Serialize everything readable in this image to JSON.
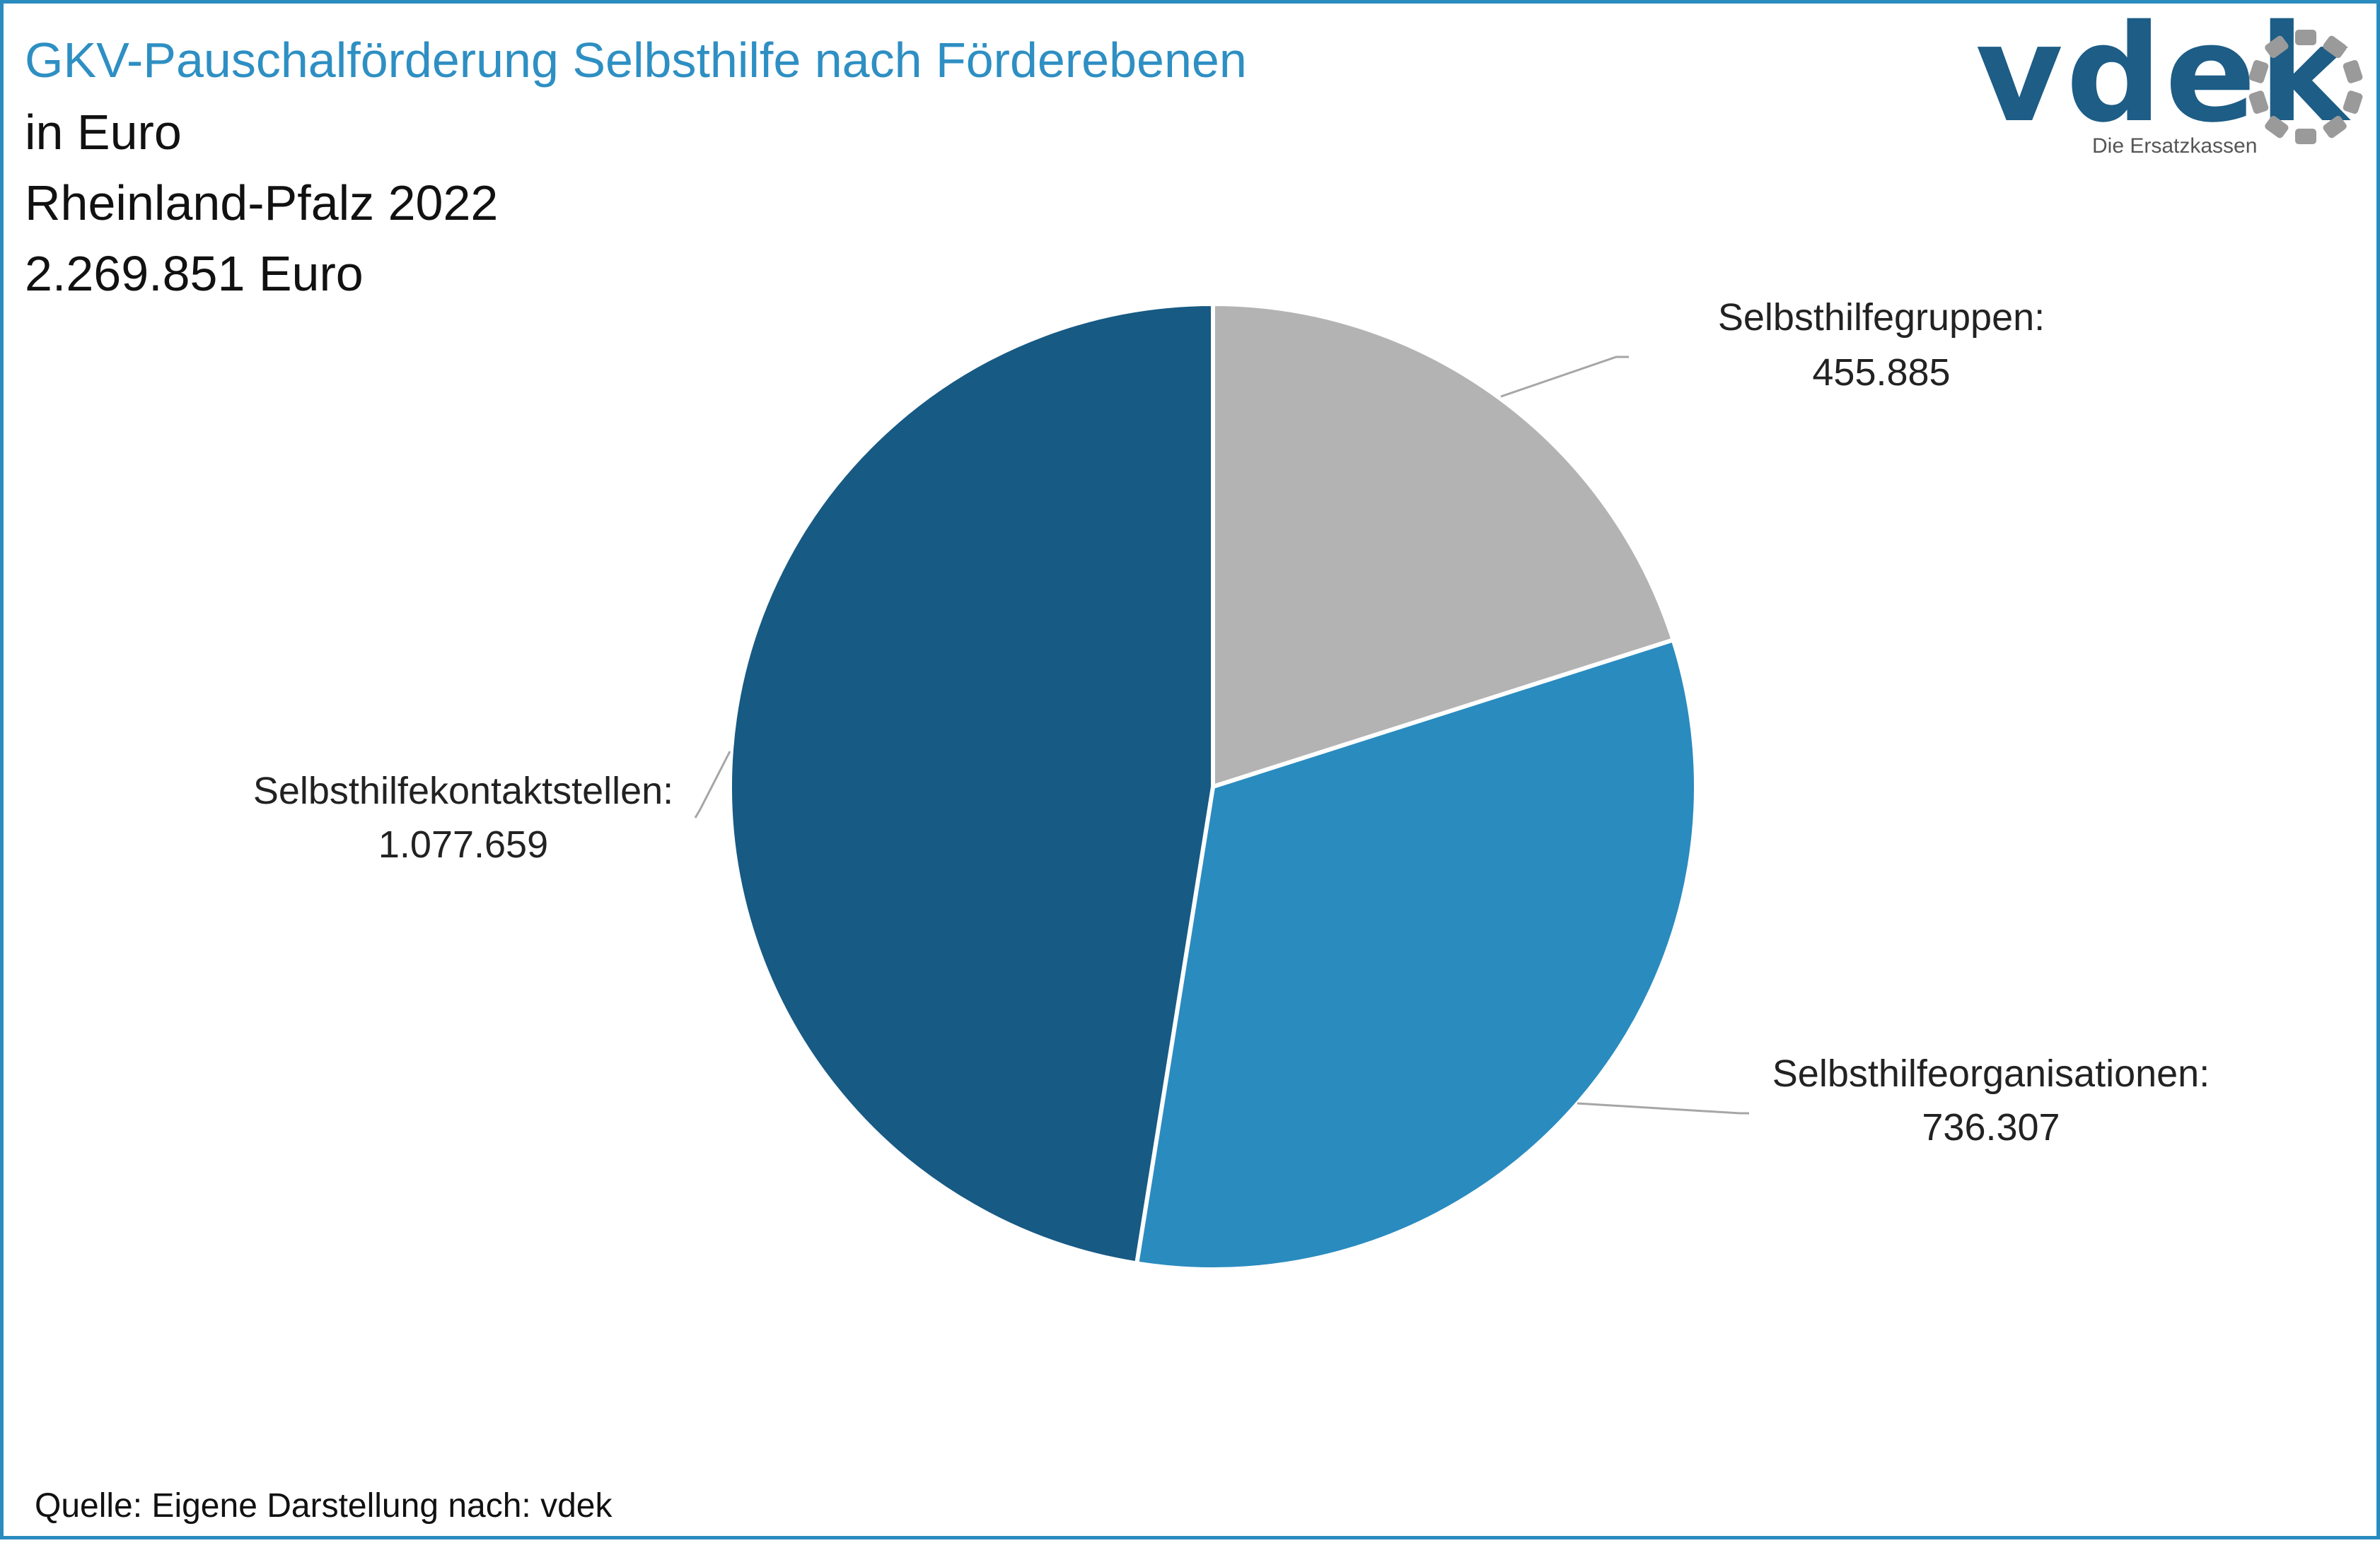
{
  "header": {
    "title": "GKV-Pauschalförderung Selbsthilfe nach Förderebenen",
    "subtitle_1": "in Euro",
    "subtitle_2": "Rheinland-Pfalz 2022",
    "subtitle_3": "2.269.851 Euro"
  },
  "logo": {
    "word": "vdek",
    "tagline": "Die Ersatzkassen"
  },
  "footer": {
    "source": "Quelle: Eigene Darstellung nach: vdek"
  },
  "colors": {
    "accent": "#2e8fc3",
    "border": "#2a8bbf"
  },
  "chart_data": {
    "type": "pie",
    "title": "GKV-Pauschalförderung Selbsthilfe nach Förderebenen",
    "unit": "Euro",
    "start_angle": "12 o'clock",
    "direction": "clockwise",
    "slices": [
      {
        "label": "Selbsthilfegruppen:",
        "value": 455885,
        "value_label": "455.885",
        "color": "#b3b3b3"
      },
      {
        "label": "Selbsthilfeorganisationen:",
        "value": 736307,
        "value_label": "736.307",
        "color": "#2a8bbf"
      },
      {
        "label": "Selbsthilfekontaktstellen:",
        "value": 1077659,
        "value_label": "1.077.659",
        "color": "#175a84"
      }
    ],
    "total_label": "2.269.851 Euro"
  }
}
